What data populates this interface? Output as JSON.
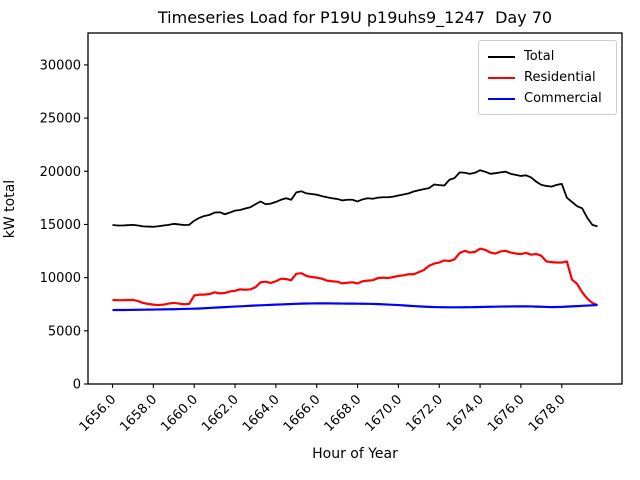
{
  "figure": {
    "title": "Timeseries Load for P19U p19uhs9_1247  Day 70",
    "xlabel": "Hour of Year",
    "ylabel": "kW total"
  },
  "legend": {
    "position": "upper right",
    "items": [
      {
        "label": "Total",
        "color": "#000000"
      },
      {
        "label": "Residential",
        "color": "#ff0000"
      },
      {
        "label": "Commercial",
        "color": "#0000ff"
      }
    ]
  },
  "chart_data": {
    "type": "line",
    "title": "Timeseries Load for P19U p19uhs9_1247  Day 70",
    "xlabel": "Hour of Year",
    "ylabel": "kW total",
    "grid": false,
    "legend_position": "upper right",
    "xlim": [
      1654.8,
      1680.95
    ],
    "ylim": [
      0,
      33000
    ],
    "x_ticks": [
      1656,
      1658,
      1660,
      1662,
      1664,
      1666,
      1668,
      1670,
      1672,
      1674,
      1676,
      1678
    ],
    "x_tick_labels": [
      "1656.0",
      "1658.0",
      "1660.0",
      "1662.0",
      "1664.0",
      "1666.0",
      "1668.0",
      "1670.0",
      "1672.0",
      "1674.0",
      "1676.0",
      "1678.0"
    ],
    "x_tick_rotation": 45,
    "y_ticks": [
      0,
      5000,
      10000,
      15000,
      20000,
      25000,
      30000
    ],
    "y_tick_labels": [
      "0",
      "5000",
      "10000",
      "15000",
      "20000",
      "25000",
      "30000"
    ],
    "x": [
      1656.0,
      1656.25,
      1656.5,
      1656.75,
      1657.0,
      1657.25,
      1657.5,
      1657.75,
      1658.0,
      1658.25,
      1658.5,
      1658.75,
      1659.0,
      1659.25,
      1659.5,
      1659.75,
      1660.0,
      1660.25,
      1660.5,
      1660.75,
      1661.0,
      1661.25,
      1661.5,
      1661.75,
      1662.0,
      1662.25,
      1662.5,
      1662.75,
      1663.0,
      1663.25,
      1663.5,
      1663.75,
      1664.0,
      1664.25,
      1664.5,
      1664.75,
      1665.0,
      1665.25,
      1665.5,
      1665.75,
      1666.0,
      1666.25,
      1666.5,
      1666.75,
      1667.0,
      1667.25,
      1667.5,
      1667.75,
      1668.0,
      1668.25,
      1668.5,
      1668.75,
      1669.0,
      1669.25,
      1669.5,
      1669.75,
      1670.0,
      1670.25,
      1670.5,
      1670.75,
      1671.0,
      1671.25,
      1671.5,
      1671.75,
      1672.0,
      1672.25,
      1672.5,
      1672.75,
      1673.0,
      1673.25,
      1673.5,
      1673.75,
      1674.0,
      1674.25,
      1674.5,
      1674.75,
      1675.0,
      1675.25,
      1675.5,
      1675.75,
      1676.0,
      1676.25,
      1676.5,
      1676.75,
      1677.0,
      1677.25,
      1677.5,
      1677.75,
      1678.0,
      1678.25,
      1678.5,
      1678.75,
      1679.0,
      1679.25,
      1679.5,
      1679.75
    ],
    "series": [
      {
        "name": "Total",
        "color": "#000000",
        "lw": 1.8,
        "values": [
          14950,
          14900,
          14900,
          14930,
          14960,
          14900,
          14820,
          14800,
          14780,
          14830,
          14900,
          14960,
          15060,
          15000,
          14950,
          14960,
          15350,
          15620,
          15800,
          15900,
          16120,
          16150,
          15960,
          16120,
          16300,
          16360,
          16500,
          16620,
          16900,
          17160,
          16900,
          16960,
          17120,
          17320,
          17460,
          17320,
          18020,
          18120,
          17920,
          17860,
          17800,
          17660,
          17560,
          17460,
          17400,
          17260,
          17320,
          17320,
          17160,
          17360,
          17460,
          17420,
          17520,
          17560,
          17560,
          17620,
          17720,
          17820,
          17920,
          18100,
          18220,
          18320,
          18420,
          18760,
          18700,
          18660,
          19200,
          19360,
          19900,
          19860,
          19760,
          19860,
          20100,
          19960,
          19760,
          19820,
          19900,
          19960,
          19760,
          19660,
          19560,
          19620,
          19420,
          19020,
          18720,
          18620,
          18560,
          18720,
          18820,
          17520,
          17120,
          16720,
          16520,
          15620,
          14960,
          14820
        ]
      },
      {
        "name": "Residential",
        "color": "#ff0000",
        "lw": 2.2,
        "values": [
          7900,
          7880,
          7880,
          7900,
          7900,
          7800,
          7620,
          7520,
          7460,
          7420,
          7460,
          7560,
          7620,
          7560,
          7500,
          7520,
          8320,
          8400,
          8400,
          8460,
          8620,
          8520,
          8560,
          8700,
          8760,
          8900,
          8860,
          8900,
          9100,
          9560,
          9620,
          9500,
          9660,
          9900,
          9860,
          9760,
          10360,
          10420,
          10160,
          10060,
          10000,
          9900,
          9720,
          9660,
          9620,
          9460,
          9520,
          9560,
          9460,
          9660,
          9720,
          9760,
          9960,
          10000,
          9960,
          10060,
          10160,
          10220,
          10320,
          10320,
          10520,
          10720,
          11120,
          11320,
          11420,
          11620,
          11560,
          11720,
          12320,
          12520,
          12360,
          12420,
          12720,
          12620,
          12360,
          12260,
          12460,
          12520,
          12360,
          12260,
          12220,
          12320,
          12160,
          12220,
          12060,
          11520,
          11460,
          11420,
          11420,
          11520,
          9820,
          9420,
          8620,
          8020,
          7620,
          7420
        ]
      },
      {
        "name": "Commercial",
        "color": "#0000ff",
        "lw": 2.2,
        "values": [
          6950,
          6955,
          6960,
          6965,
          6970,
          6980,
          6985,
          6995,
          7000,
          7010,
          7015,
          7025,
          7030,
          7045,
          7055,
          7070,
          7080,
          7100,
          7120,
          7150,
          7180,
          7205,
          7230,
          7255,
          7280,
          7305,
          7330,
          7355,
          7380,
          7400,
          7420,
          7440,
          7460,
          7480,
          7500,
          7520,
          7540,
          7555,
          7570,
          7575,
          7580,
          7580,
          7580,
          7575,
          7570,
          7565,
          7560,
          7555,
          7550,
          7545,
          7540,
          7525,
          7510,
          7490,
          7470,
          7445,
          7420,
          7390,
          7360,
          7330,
          7300,
          7275,
          7250,
          7235,
          7220,
          7215,
          7210,
          7210,
          7210,
          7215,
          7220,
          7230,
          7240,
          7250,
          7260,
          7270,
          7280,
          7285,
          7290,
          7295,
          7300,
          7295,
          7290,
          7275,
          7260,
          7245,
          7230,
          7240,
          7250,
          7275,
          7300,
          7325,
          7350,
          7375,
          7400,
          7420
        ]
      }
    ]
  }
}
